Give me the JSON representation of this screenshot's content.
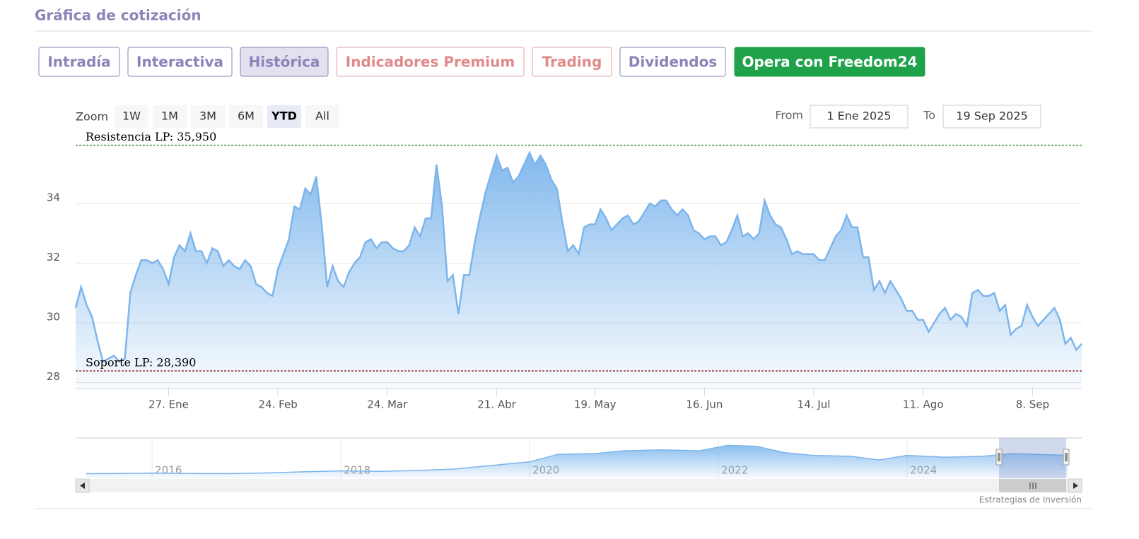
{
  "page": {
    "title": "Gráfica de cotización",
    "tabs": [
      "Intradía",
      "Interactiva",
      "Histórica",
      "Indicadores Premium",
      "Trading",
      "Dividendos",
      "Opera con Freedom24"
    ],
    "zoom_label": "Zoom",
    "zoom_buttons": [
      "1W",
      "1M",
      "3M",
      "6M",
      "YTD",
      "All"
    ],
    "from_label": "From",
    "from_value": "1 Ene 2025",
    "to_label": "To",
    "to_value": "19 Sep 2025",
    "credit": "Estrategias de Inversión"
  },
  "chart_data": {
    "type": "area",
    "color": "#7cb5ec",
    "grid": true,
    "ylim": [
      27.8,
      36.2
    ],
    "yticks": [
      28,
      30,
      32,
      34
    ],
    "categories": [
      null,
      null,
      null,
      null,
      null,
      null,
      null,
      null,
      null,
      null,
      null,
      null,
      null,
      null,
      null,
      null,
      null,
      "27. Ene",
      null,
      null,
      null,
      null,
      null,
      null,
      null,
      null,
      null,
      null,
      null,
      null,
      null,
      null,
      null,
      null,
      null,
      null,
      null,
      "24. Feb",
      null,
      null,
      null,
      null,
      null,
      null,
      null,
      null,
      null,
      null,
      null,
      null,
      null,
      null,
      null,
      null,
      null,
      null,
      null,
      "24. Mar",
      null,
      null,
      null,
      null,
      null,
      null,
      null,
      null,
      null,
      null,
      null,
      null,
      null,
      null,
      null,
      null,
      null,
      null,
      null,
      "21. Abr",
      null,
      null,
      null,
      null,
      null,
      null,
      null,
      null,
      null,
      null,
      null,
      null,
      null,
      null,
      null,
      null,
      null,
      "19. May",
      null,
      null,
      null,
      null,
      null,
      null,
      null,
      null,
      null,
      null,
      null,
      null,
      null,
      null,
      null,
      null,
      null,
      null,
      null,
      "16. Jun",
      null,
      null,
      null,
      null,
      null,
      null,
      null,
      null,
      null,
      null,
      null,
      null,
      null,
      null,
      null,
      null,
      null,
      null,
      null,
      "14. Jul",
      null,
      null,
      null,
      null,
      null,
      null,
      null,
      null,
      null,
      null,
      null,
      null,
      null,
      null,
      null,
      null,
      null,
      null,
      null,
      "11. Ago",
      null,
      null,
      null,
      null,
      null,
      null,
      null,
      null,
      null,
      null,
      null,
      null,
      null,
      null,
      null,
      null,
      null,
      null,
      null,
      "8. Sep",
      null,
      null,
      null,
      null,
      null,
      null,
      null,
      null,
      null
    ],
    "values": [
      30.5,
      31.2,
      30.6,
      30.2,
      29.4,
      28.7,
      28.8,
      28.9,
      28.7,
      28.8,
      31.0,
      31.6,
      32.1,
      32.1,
      32.0,
      32.1,
      31.8,
      31.3,
      32.2,
      32.6,
      32.4,
      33.0,
      32.4,
      32.4,
      32.0,
      32.5,
      32.4,
      31.9,
      32.1,
      31.9,
      31.8,
      32.1,
      31.9,
      31.3,
      31.2,
      31.0,
      30.9,
      31.8,
      32.3,
      32.8,
      33.9,
      33.8,
      34.5,
      34.3,
      34.9,
      33.3,
      31.2,
      31.9,
      31.4,
      31.2,
      31.7,
      32.0,
      32.2,
      32.7,
      32.8,
      32.5,
      32.7,
      32.7,
      32.5,
      32.4,
      32.4,
      32.6,
      33.2,
      32.9,
      33.5,
      33.5,
      35.3,
      33.9,
      31.4,
      31.6,
      30.3,
      31.6,
      31.6,
      32.7,
      33.6,
      34.4,
      35.0,
      35.6,
      35.1,
      35.2,
      34.7,
      34.9,
      35.3,
      35.7,
      35.3,
      35.6,
      35.3,
      34.8,
      34.5,
      33.4,
      32.4,
      32.6,
      32.3,
      33.2,
      33.3,
      33.3,
      33.8,
      33.5,
      33.1,
      33.3,
      33.5,
      33.6,
      33.3,
      33.4,
      33.7,
      34.0,
      33.9,
      34.1,
      34.1,
      33.8,
      33.6,
      33.8,
      33.6,
      33.1,
      33.0,
      32.8,
      32.9,
      32.9,
      32.6,
      32.7,
      33.1,
      33.6,
      32.9,
      33.0,
      32.8,
      33.0,
      34.1,
      33.6,
      33.3,
      33.2,
      32.8,
      32.3,
      32.4,
      32.3,
      32.3,
      32.3,
      32.1,
      32.1,
      32.5,
      32.9,
      33.1,
      33.6,
      33.2,
      33.2,
      32.2,
      32.2,
      31.1,
      31.4,
      31.0,
      31.4,
      31.1,
      30.8,
      30.4,
      30.4,
      30.1,
      30.1,
      29.7,
      30.0,
      30.3,
      30.5,
      30.1,
      30.3,
      30.2,
      29.9,
      31.0,
      31.1,
      30.9,
      30.9,
      31.0,
      30.4,
      30.6,
      29.6,
      29.8,
      29.9,
      30.6,
      30.2,
      29.9,
      30.1,
      30.3,
      30.5,
      30.1,
      29.3,
      29.5,
      29.1,
      29.3
    ],
    "annotations": [
      {
        "label": "Resistencia LP: 35,950",
        "value": 35.95,
        "color": "#2e8b2e"
      },
      {
        "label": "Soporte LP: 28,390",
        "value": 28.39,
        "color": "#8b1a1a"
      }
    ],
    "navigator": {
      "xlim": [
        2015.19,
        2025.85
      ],
      "xticks": [
        2016,
        2018,
        2020,
        2022,
        2024
      ],
      "ylim": [
        15,
        37
      ],
      "x": [
        2015.3,
        2015.7,
        2016.0,
        2016.4,
        2016.8,
        2017.2,
        2017.6,
        2018.0,
        2018.4,
        2018.8,
        2019.2,
        2019.6,
        2020.0,
        2020.3,
        2020.7,
        2021.0,
        2021.4,
        2021.8,
        2022.1,
        2022.4,
        2022.7,
        2023.0,
        2023.4,
        2023.7,
        2024.0,
        2024.4,
        2024.8,
        2025.1,
        2025.4,
        2025.7
      ],
      "values": [
        17.5,
        17.6,
        17.8,
        17.6,
        17.5,
        17.9,
        18.5,
        19.0,
        18.8,
        19.2,
        20.0,
        22.0,
        24.0,
        28.0,
        28.5,
        30.0,
        30.5,
        30.0,
        33.0,
        32.5,
        29.0,
        27.5,
        27.0,
        25.0,
        27.5,
        26.5,
        27.0,
        28.5,
        28.0,
        27.5
      ]
    }
  }
}
